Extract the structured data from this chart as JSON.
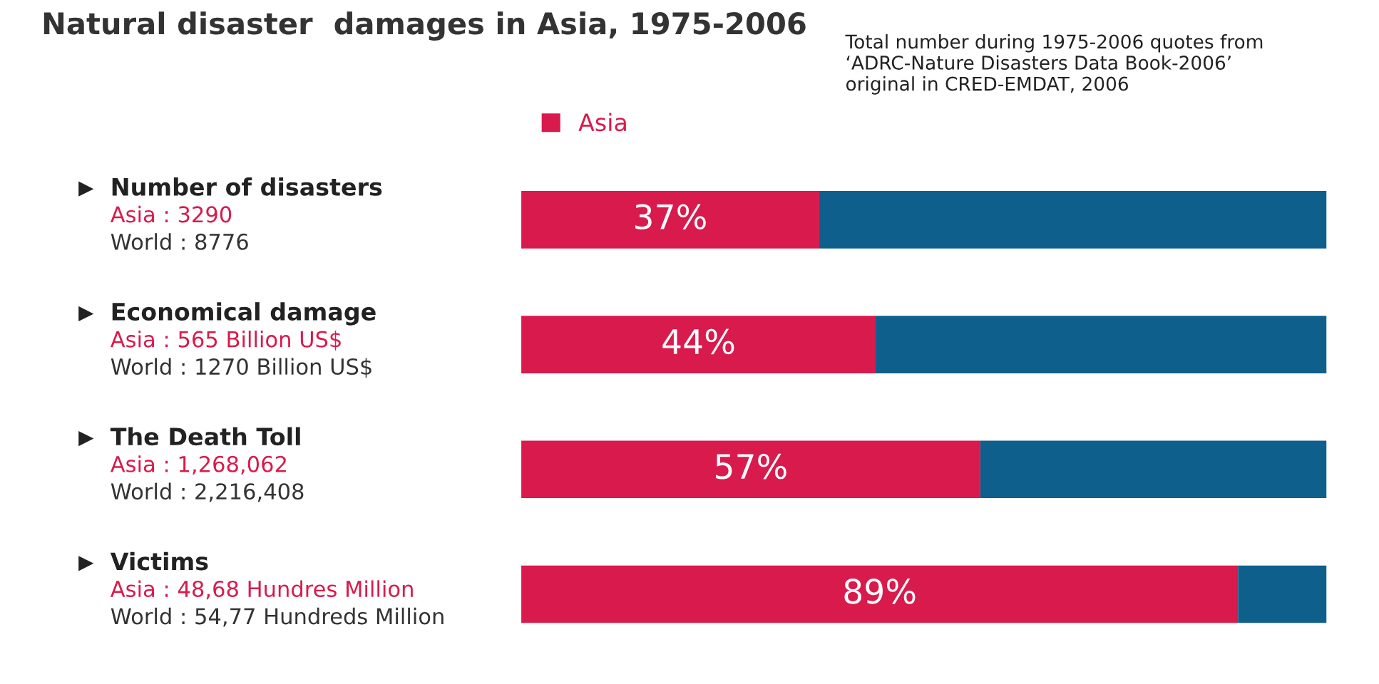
{
  "chart_data": {
    "type": "bar",
    "orientation": "horizontal",
    "stacked": true,
    "title": "Natural disaster  damages in Asia, 1975-2006",
    "categories": [
      "Number of disasters",
      "Economical damage",
      "The Death Toll",
      "Victims"
    ],
    "series": [
      {
        "name": "Asia",
        "color": "#d91a4c",
        "values": [
          37,
          44,
          57,
          89
        ],
        "value_labels": [
          "37%",
          "44%",
          "57%",
          "89%"
        ]
      },
      {
        "color": "#0f5f8c",
        "values": [
          63,
          56,
          43,
          11
        ]
      }
    ],
    "xlim": [
      0,
      100
    ],
    "legend": "top left",
    "annotations": [
      "Total number during 1975-2006 quotes from\n‘ADRC-Nature Disasters Data Book-2006’\noriginal in CRED-EMDAT, 2006",
      "Asia : 3290",
      "World : 8776",
      "Asia : 565 Billion US$",
      "World : 1270 Billion US$",
      "Asia : 1,268,062",
      "World : 2,216,408",
      "Asia : 48,68 Hundres Million",
      "World : 54,77 Hundreds Million"
    ]
  }
}
